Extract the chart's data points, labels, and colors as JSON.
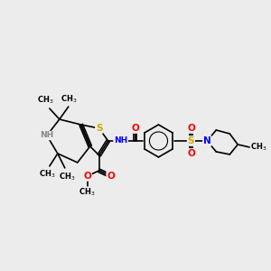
{
  "bg_color": "#ececec",
  "atom_colors": {
    "S": "#ccaa00",
    "N": "#0000ff",
    "O": "#ff0000",
    "C": "#000000",
    "H": "#888888"
  }
}
